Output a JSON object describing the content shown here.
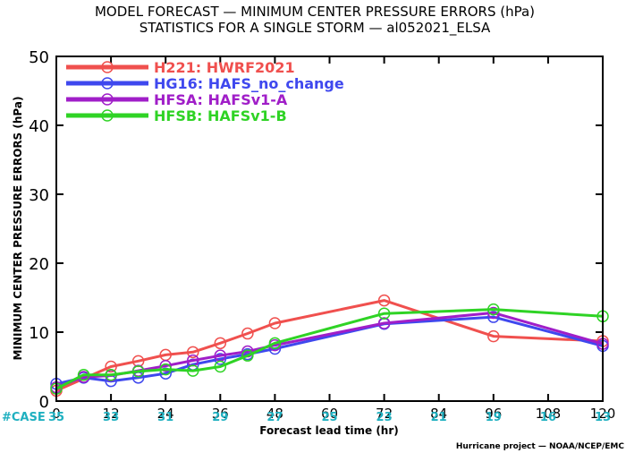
{
  "title_line1": "MODEL FORECAST — MINIMUM CENTER PRESSURE ERRORS (hPa)",
  "title_line2": "STATISTICS FOR A SINGLE STORM — al052021_ELSA",
  "footer_credit": "Hurricane project — NOAA/NCEP/EMC",
  "case_label": "#CASE",
  "chart_data": {
    "type": "line",
    "xlabel": "Forecast lead time (hr)",
    "ylabel": "MINIMUM CENTER PRESSURE ERRORS (hPa)",
    "xlim": [
      0,
      120
    ],
    "ylim": [
      0,
      50
    ],
    "xticks": [
      0,
      12,
      24,
      36,
      48,
      60,
      72,
      84,
      96,
      108,
      120
    ],
    "yticks": [
      0,
      10,
      20,
      30,
      40,
      50
    ],
    "grid": false,
    "legend_position": "top-left",
    "case_x": [
      0,
      12,
      24,
      36,
      48,
      60,
      72,
      84,
      96,
      108,
      120
    ],
    "case_counts": [
      "35",
      "33",
      "31",
      "29",
      "27",
      "25",
      "23",
      "21",
      "19",
      "16",
      "13"
    ],
    "series": [
      {
        "name": "H221: HWRF2021",
        "color": "#f0504e",
        "x": [
          0,
          12,
          18,
          24,
          30,
          36,
          42,
          48,
          72,
          96,
          120
        ],
        "y": [
          1.5,
          5.0,
          5.8,
          6.7,
          7.1,
          8.4,
          9.8,
          11.3,
          14.6,
          9.4,
          8.7
        ]
      },
      {
        "name": "HG16: HAFS_no_change",
        "color": "#3f48ee",
        "x": [
          0,
          6,
          12,
          18,
          24,
          30,
          36,
          42,
          48,
          72,
          96,
          120
        ],
        "y": [
          2.5,
          3.4,
          2.9,
          3.4,
          4.0,
          5.3,
          6.1,
          6.8,
          7.6,
          11.2,
          12.2,
          8.0
        ]
      },
      {
        "name": "HFSA: HAFSv1-A",
        "color": "#a01ec8",
        "x": [
          0,
          6,
          12,
          18,
          24,
          30,
          36,
          42,
          48,
          72,
          96,
          120
        ],
        "y": [
          2.0,
          3.5,
          3.7,
          4.4,
          5.1,
          5.9,
          6.6,
          7.2,
          8.1,
          11.3,
          12.8,
          8.3
        ]
      },
      {
        "name": "HFSB: HAFSv1-B",
        "color": "#2fd325",
        "x": [
          0,
          6,
          12,
          18,
          24,
          30,
          36,
          42,
          48,
          72,
          96,
          120
        ],
        "y": [
          1.8,
          3.8,
          3.8,
          4.3,
          4.6,
          4.4,
          5.0,
          6.6,
          8.4,
          12.7,
          13.3,
          12.3
        ]
      }
    ]
  }
}
